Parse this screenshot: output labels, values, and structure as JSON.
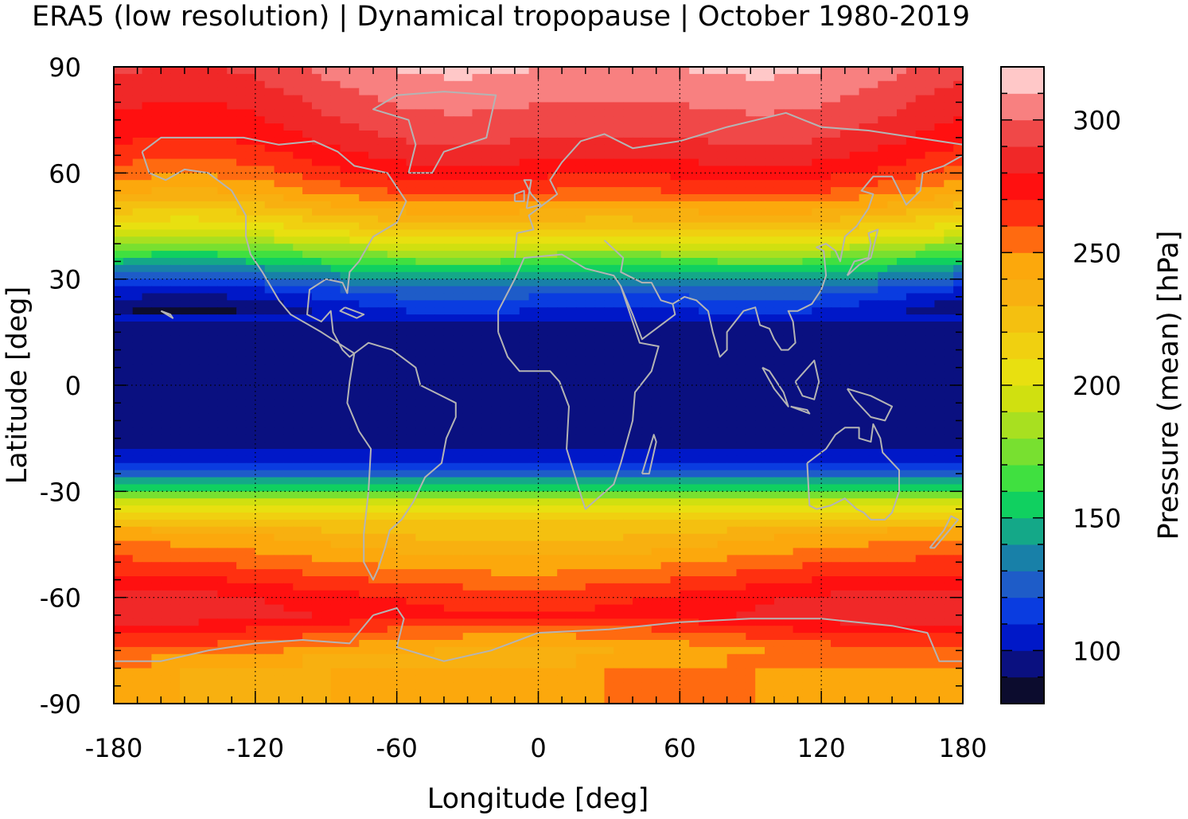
{
  "chart_data": {
    "type": "heatmap",
    "title": "ERA5 (low resolution) | Dynamical tropopause | October 1980-2019",
    "xlabel": "Longitude [deg]",
    "ylabel": "Latitude [deg]",
    "xlim": [
      -180,
      180
    ],
    "ylim": [
      -90,
      90
    ],
    "x_ticks": [
      "-180",
      "-120",
      "-60",
      "0",
      "60",
      "120",
      "180"
    ],
    "y_ticks": [
      "90",
      "60",
      "30",
      "0",
      "-30",
      "-60",
      "-90"
    ],
    "grid": true,
    "colorbar": {
      "label": "Pressure (mean) [hPa]",
      "range": [
        80,
        320
      ],
      "ticks": [
        "300",
        "250",
        "200",
        "150",
        "100"
      ],
      "levels": [
        {
          "from": 80,
          "to": 90,
          "color": "#0c0c2e"
        },
        {
          "from": 90,
          "to": 100,
          "color": "#0a1080"
        },
        {
          "from": 100,
          "to": 110,
          "color": "#0018c8"
        },
        {
          "from": 110,
          "to": 120,
          "color": "#0a3ce0"
        },
        {
          "from": 120,
          "to": 130,
          "color": "#1e5cc8"
        },
        {
          "from": 130,
          "to": 140,
          "color": "#1880a8"
        },
        {
          "from": 140,
          "to": 150,
          "color": "#14a888"
        },
        {
          "from": 150,
          "to": 160,
          "color": "#10d060"
        },
        {
          "from": 160,
          "to": 170,
          "color": "#40e040"
        },
        {
          "from": 170,
          "to": 180,
          "color": "#78e030"
        },
        {
          "from": 180,
          "to": 190,
          "color": "#a8e020"
        },
        {
          "from": 190,
          "to": 200,
          "color": "#d0e010"
        },
        {
          "from": 200,
          "to": 210,
          "color": "#e8e010"
        },
        {
          "from": 210,
          "to": 220,
          "color": "#f0d010"
        },
        {
          "from": 220,
          "to": 230,
          "color": "#f4c010"
        },
        {
          "from": 230,
          "to": 240,
          "color": "#f8b010"
        },
        {
          "from": 240,
          "to": 250,
          "color": "#fca80c"
        },
        {
          "from": 250,
          "to": 260,
          "color": "#ff6a10"
        },
        {
          "from": 260,
          "to": 270,
          "color": "#ff3010"
        },
        {
          "from": 270,
          "to": 280,
          "color": "#ff1010"
        },
        {
          "from": 280,
          "to": 290,
          "color": "#f02828"
        },
        {
          "from": 290,
          "to": 300,
          "color": "#f04848"
        },
        {
          "from": 300,
          "to": 310,
          "color": "#f88080"
        },
        {
          "from": 310,
          "to": 320,
          "color": "#ffc8c8"
        }
      ]
    },
    "latitude_profile": [
      {
        "lat": 90,
        "value": 305
      },
      {
        "lat": 80,
        "value": 295
      },
      {
        "lat": 70,
        "value": 285
      },
      {
        "lat": 62,
        "value": 272
      },
      {
        "lat": 55,
        "value": 255
      },
      {
        "lat": 48,
        "value": 230
      },
      {
        "lat": 42,
        "value": 205
      },
      {
        "lat": 37,
        "value": 175
      },
      {
        "lat": 32,
        "value": 145
      },
      {
        "lat": 27,
        "value": 120
      },
      {
        "lat": 22,
        "value": 105
      },
      {
        "lat": 15,
        "value": 95
      },
      {
        "lat": 0,
        "value": 93
      },
      {
        "lat": -15,
        "value": 95
      },
      {
        "lat": -20,
        "value": 105
      },
      {
        "lat": -25,
        "value": 125
      },
      {
        "lat": -28,
        "value": 150
      },
      {
        "lat": -32,
        "value": 185
      },
      {
        "lat": -36,
        "value": 210
      },
      {
        "lat": -42,
        "value": 235
      },
      {
        "lat": -48,
        "value": 248
      },
      {
        "lat": -54,
        "value": 262
      },
      {
        "lat": -60,
        "value": 276
      },
      {
        "lat": -65,
        "value": 280
      },
      {
        "lat": -70,
        "value": 262
      },
      {
        "lat": -76,
        "value": 245
      },
      {
        "lat": -84,
        "value": 245
      },
      {
        "lat": -90,
        "value": 245
      }
    ],
    "line_colors": {
      "coastline": "#b4b4b4",
      "grid": "#000000"
    }
  }
}
